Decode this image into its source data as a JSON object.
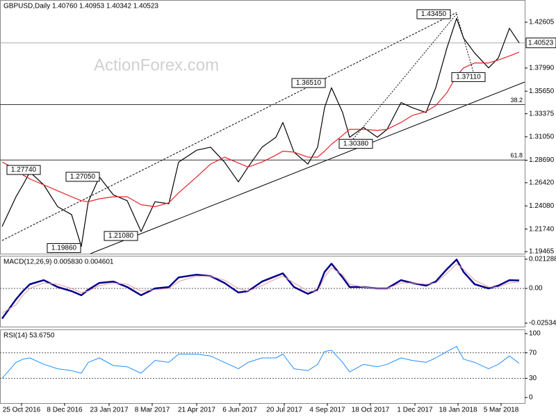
{
  "chart_data": [
    {
      "type": "line",
      "title": "GBPUSD,Daily 1.40760 1.40953 1.40342 1.40523",
      "watermark": "ActionForex.com",
      "x": [
        0,
        10,
        15,
        20,
        30,
        40,
        50,
        57,
        62,
        70,
        80,
        90,
        100,
        110,
        120,
        127,
        140,
        150,
        160,
        170,
        177,
        187,
        197,
        202,
        210,
        220,
        227,
        232,
        237,
        245,
        250,
        260,
        270,
        277,
        287,
        295,
        305,
        312,
        320,
        327,
        332,
        340,
        350,
        357,
        365,
        372
      ],
      "xlim": [
        -1.5,
        376
      ],
      "series": [
        {
          "name": "GBPUSD",
          "color": "#000000",
          "values": [
            1.22,
            1.25,
            1.262,
            1.275,
            1.262,
            1.24,
            1.232,
            1.2,
            1.245,
            1.27,
            1.252,
            1.246,
            1.215,
            1.245,
            1.243,
            1.285,
            1.297,
            1.3,
            1.285,
            1.265,
            1.28,
            1.3,
            1.31,
            1.325,
            1.295,
            1.283,
            1.3,
            1.34,
            1.36,
            1.335,
            1.31,
            1.32,
            1.31,
            1.318,
            1.345,
            1.34,
            1.335,
            1.36,
            1.4,
            1.43,
            1.41,
            1.395,
            1.38,
            1.39,
            1.42,
            1.40523
          ]
        },
        {
          "name": "MA",
          "color": "#e8202a",
          "values": [
            1.285,
            1.278,
            1.272,
            1.268,
            1.262,
            1.256,
            1.25,
            1.246,
            1.245,
            1.248,
            1.25,
            1.25,
            1.242,
            1.24,
            1.244,
            1.254,
            1.27,
            1.283,
            1.29,
            1.284,
            1.28,
            1.285,
            1.292,
            1.296,
            1.295,
            1.29,
            1.29,
            1.296,
            1.303,
            1.312,
            1.318,
            1.318,
            1.317,
            1.318,
            1.325,
            1.332,
            1.336,
            1.342,
            1.355,
            1.372,
            1.38,
            1.385,
            1.385,
            1.388,
            1.392,
            1.396
          ]
        }
      ],
      "ylim": [
        1.1926,
        1.4485
      ],
      "yticks": [
        1.42605,
        {
          "value": 1.3799,
          "label": "1.37990"
        },
        {
          "value": 1.3565,
          "label": "1.35650"
        },
        1.33375,
        {
          "value": 1.3105,
          "label": "1.31050"
        },
        {
          "value": 1.2869,
          "label": "1.28690"
        },
        {
          "value": 1.2642,
          "label": "1.26420"
        },
        {
          "value": 1.2408,
          "label": "1.24080"
        },
        {
          "value": 1.2174,
          "label": "1.21740"
        },
        1.19465
      ],
      "last_price": 1.40523,
      "levels": [
        {
          "value": 1.343,
          "label": "38.2"
        },
        {
          "value": 1.2871,
          "label": "61.8"
        }
      ],
      "annotations": [
        {
          "x": 20,
          "value": 1.2774,
          "label": "1.27740"
        },
        {
          "x": 57,
          "value": 1.1986,
          "label": "1.19860"
        },
        {
          "x": 70,
          "value": 1.2705,
          "label": "1.27050"
        },
        {
          "x": 100,
          "value": 1.2108,
          "label": "1.21080"
        },
        {
          "x": 237,
          "value": 1.3651,
          "label": "1.36510"
        },
        {
          "x": 250,
          "value": 1.3038,
          "label": "1.30380"
        },
        {
          "x": 327,
          "value": 1.4345,
          "label": "1.43450"
        },
        {
          "x": 340,
          "value": 1.3711,
          "label": "1.37110"
        }
      ]
    },
    {
      "type": "line",
      "title": "MACD(12,26,9) 0.005830 0.004601",
      "x": [
        0,
        10,
        15,
        20,
        30,
        40,
        50,
        57,
        62,
        70,
        80,
        90,
        100,
        110,
        120,
        127,
        140,
        150,
        160,
        170,
        177,
        187,
        197,
        202,
        210,
        220,
        227,
        232,
        237,
        245,
        250,
        260,
        270,
        277,
        287,
        295,
        305,
        312,
        320,
        327,
        332,
        340,
        350,
        357,
        365,
        372
      ],
      "xlim": [
        -1.5,
        376
      ],
      "series": [
        {
          "name": "MACD",
          "color": "#00008b",
          "width": 2.5,
          "values": [
            -0.022,
            -0.008,
            -0.002,
            0.003,
            0.006,
            0.001,
            -0.002,
            -0.005,
            -0.001,
            0.004,
            0.005,
            0.001,
            -0.005,
            0.0,
            0.001,
            0.008,
            0.01,
            0.009,
            0.004,
            -0.003,
            -0.002,
            0.005,
            0.009,
            0.011,
            0.001,
            -0.004,
            -0.001,
            0.012,
            0.018,
            0.008,
            0.001,
            0.001,
            0.0,
            0.0,
            0.006,
            0.004,
            0.002,
            0.005,
            0.014,
            0.021,
            0.012,
            0.003,
            0.0,
            0.002,
            0.006,
            0.00583
          ]
        },
        {
          "name": "Signal",
          "color": "#e89aa0",
          "width": 1,
          "values": [
            -0.018,
            -0.012,
            -0.005,
            0.0,
            0.004,
            0.003,
            0.0,
            -0.003,
            -0.002,
            0.002,
            0.004,
            0.003,
            -0.002,
            -0.001,
            0.0,
            0.005,
            0.009,
            0.009,
            0.006,
            0.0,
            -0.002,
            0.002,
            0.007,
            0.009,
            0.004,
            -0.002,
            -0.002,
            0.008,
            0.015,
            0.01,
            0.003,
            0.001,
            0.0,
            0.0,
            0.004,
            0.004,
            0.003,
            0.004,
            0.011,
            0.018,
            0.014,
            0.006,
            0.001,
            0.001,
            0.004,
            0.004601
          ]
        }
      ],
      "ylim": [
        -0.0279,
        0.0238
      ],
      "yticks": [
        0.021288,
        {
          "value": 0,
          "label": "0.00"
        },
        -0.025342
      ],
      "dotted": [
        0
      ]
    },
    {
      "type": "line",
      "title": "RSI(14) 53.6750",
      "x": [
        0,
        10,
        15,
        20,
        30,
        40,
        50,
        57,
        62,
        70,
        80,
        90,
        100,
        110,
        120,
        127,
        140,
        150,
        160,
        170,
        177,
        187,
        197,
        202,
        210,
        220,
        227,
        232,
        237,
        245,
        250,
        260,
        270,
        277,
        287,
        295,
        305,
        312,
        320,
        327,
        332,
        340,
        350,
        357,
        365,
        372
      ],
      "xlim": [
        -1.5,
        376
      ],
      "series": [
        {
          "name": "RSI",
          "color": "#1e90ff",
          "width": 1,
          "values": [
            30,
            55,
            60,
            62,
            52,
            45,
            42,
            38,
            55,
            62,
            50,
            48,
            38,
            58,
            55,
            68,
            68,
            65,
            55,
            45,
            55,
            62,
            62,
            68,
            45,
            42,
            52,
            72,
            74,
            55,
            40,
            52,
            48,
            52,
            62,
            58,
            55,
            62,
            72,
            80,
            60,
            55,
            45,
            52,
            65,
            53.675
          ]
        }
      ],
      "ylim": [
        -8.8,
        106.6
      ],
      "yticks": [
        100,
        70,
        30,
        0
      ],
      "dotted": [
        70,
        30
      ],
      "xticks": [
        {
          "value": 14,
          "label": "25 Oct 2016"
        },
        {
          "value": 45,
          "label": "8 Dec 2016"
        },
        {
          "value": 77,
          "label": "23 Jan 2017"
        },
        {
          "value": 108,
          "label": "8 Mar 2017"
        },
        {
          "value": 140,
          "label": "21 Apr 2017"
        },
        {
          "value": 171,
          "label": "6 Jun 2017"
        },
        {
          "value": 203,
          "label": "20 Jul 2017"
        },
        {
          "value": 234,
          "label": "4 Sep 2017"
        },
        {
          "value": 265,
          "label": "18 Oct 2017"
        },
        {
          "value": 297,
          "label": "1 Dec 2017"
        },
        {
          "value": 328,
          "label": "18 Jan 2018"
        },
        {
          "value": 359,
          "label": "5 Mar 2018"
        }
      ]
    }
  ]
}
